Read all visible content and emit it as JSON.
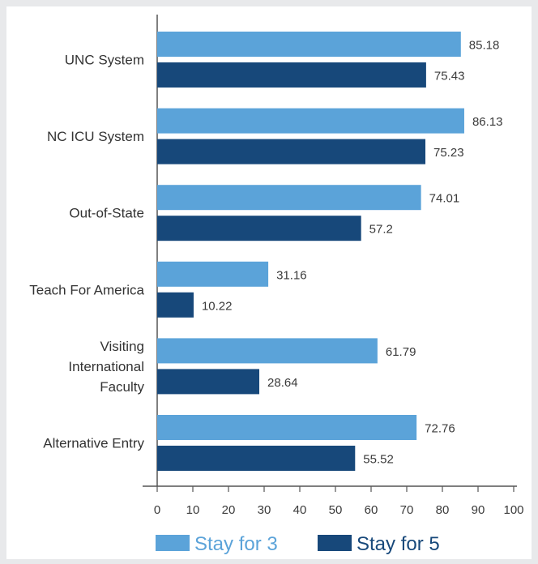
{
  "chart_data": {
    "type": "bar",
    "orientation": "horizontal",
    "categories": [
      [
        "UNC System"
      ],
      [
        "NC ICU System"
      ],
      [
        "Out-of-State"
      ],
      [
        "Teach For America"
      ],
      [
        "Visiting",
        "International",
        "Faculty"
      ],
      [
        "Alternative Entry"
      ]
    ],
    "series": [
      {
        "name": "Stay for 3",
        "color": "#5ba3d9",
        "values": [
          85.18,
          86.13,
          74.01,
          31.16,
          61.79,
          72.76
        ],
        "value_labels": [
          "85.18",
          "86.13",
          "74.01",
          "31.16",
          "61.79",
          "72.76"
        ]
      },
      {
        "name": "Stay for 5",
        "color": "#17487a",
        "values": [
          75.43,
          75.23,
          57.2,
          10.22,
          28.64,
          55.52
        ],
        "value_labels": [
          "75.43",
          "75.23",
          "57.2",
          "10.22",
          "28.64",
          "55.52"
        ]
      }
    ],
    "xlim": [
      0,
      100
    ],
    "xticks": [
      0,
      10,
      20,
      30,
      40,
      50,
      60,
      70,
      80,
      90,
      100
    ],
    "xtick_labels": [
      "0",
      "10",
      "20",
      "30",
      "40",
      "50",
      "60",
      "70",
      "80",
      "90",
      "100"
    ],
    "grid": false,
    "legend": "bottom"
  }
}
